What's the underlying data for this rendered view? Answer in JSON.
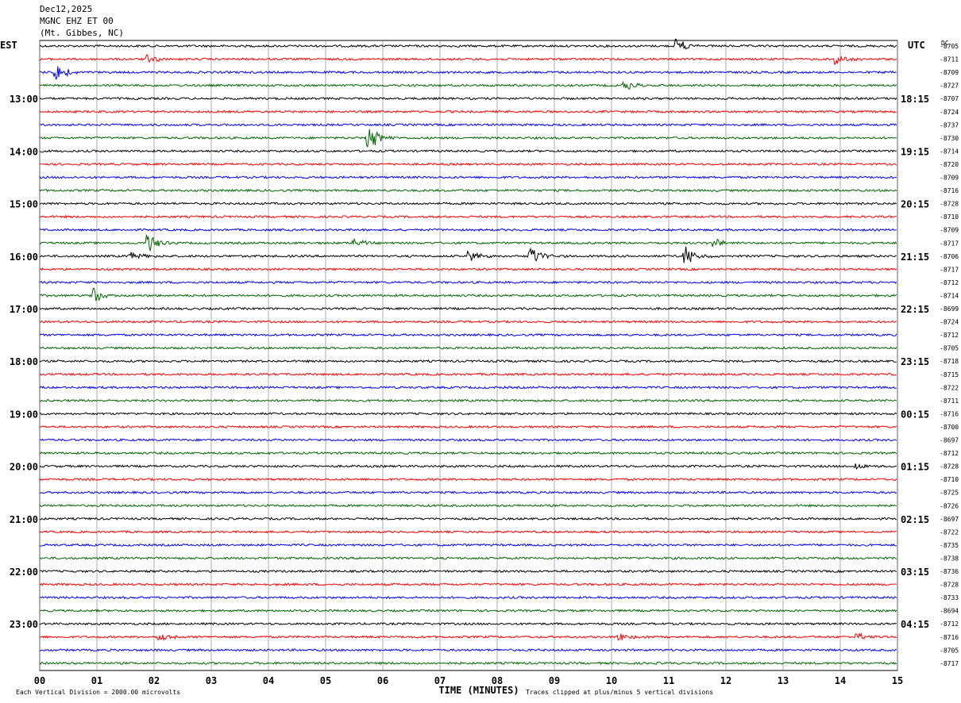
{
  "header": {
    "date": "Dec12,2025",
    "station": "MGNC EHZ ET 00",
    "location": "(Mt. Gibbes, NC)"
  },
  "chart_data": {
    "type": "line",
    "title": "",
    "left_axis_label": "EST",
    "right_axis_label": "UTC",
    "dc_label": "DC",
    "xlabel": "TIME (MINUTES)",
    "x_ticks": [
      "00",
      "01",
      "02",
      "03",
      "04",
      "05",
      "06",
      "07",
      "08",
      "09",
      "10",
      "11",
      "12",
      "13",
      "14",
      "15"
    ],
    "xlim": [
      0,
      15
    ],
    "est_hour_labels": [
      "13:00",
      "14:00",
      "15:00",
      "16:00",
      "17:00",
      "18:00",
      "19:00",
      "20:00",
      "21:00",
      "22:00",
      "23:00"
    ],
    "utc_hour_labels": [
      "18:15",
      "19:15",
      "20:15",
      "21:15",
      "22:15",
      "23:15",
      "00:15",
      "01:15",
      "02:15",
      "03:15",
      "04:15"
    ],
    "dc_offsets": [
      "-8705",
      "-8711",
      "-8709",
      "-8727",
      "-8707",
      "-8724",
      "-8737",
      "-8730",
      "-8714",
      "-8720",
      "-8709",
      "-8716",
      "-8728",
      "-8710",
      "-8709",
      "-8717",
      "-8706",
      "-8717",
      "-8712",
      "-8714",
      "-8699",
      "-8724",
      "-8712",
      "-8705",
      "-8718",
      "-8715",
      "-8722",
      "-8711",
      "-8716",
      "-8700",
      "-8697",
      "-8712",
      "-8728",
      "-8710",
      "-8725",
      "-8726",
      "-8697",
      "-8722",
      "-8735",
      "-8738",
      "-8736",
      "-8728",
      "-8733",
      "-8694",
      "-8712",
      "-8716",
      "-8705",
      "-8717"
    ],
    "trace_colors": [
      "#000000",
      "#ff0000",
      "#0000ff",
      "#006400"
    ],
    "trace_count": 48,
    "minutes_per_trace": 15,
    "events": [
      {
        "trace": 0,
        "minute": 11.15,
        "amp": 0.8
      },
      {
        "trace": 1,
        "minute": 1.9,
        "amp": 0.5
      },
      {
        "trace": 1,
        "minute": 13.95,
        "amp": 0.6
      },
      {
        "trace": 2,
        "minute": 0.3,
        "amp": 1.0
      },
      {
        "trace": 3,
        "minute": 10.25,
        "amp": 0.5
      },
      {
        "trace": 7,
        "minute": 5.75,
        "amp": 1.5
      },
      {
        "trace": 15,
        "minute": 1.9,
        "amp": 1.0
      },
      {
        "trace": 15,
        "minute": 5.5,
        "amp": 0.5
      },
      {
        "trace": 15,
        "minute": 11.8,
        "amp": 0.5
      },
      {
        "trace": 16,
        "minute": 1.6,
        "amp": 0.5
      },
      {
        "trace": 16,
        "minute": 7.5,
        "amp": 0.6
      },
      {
        "trace": 16,
        "minute": 8.6,
        "amp": 1.0
      },
      {
        "trace": 16,
        "minute": 11.3,
        "amp": 1.0
      },
      {
        "trace": 19,
        "minute": 0.95,
        "amp": 0.8
      },
      {
        "trace": 32,
        "minute": 14.3,
        "amp": 0.4
      },
      {
        "trace": 45,
        "minute": 2.1,
        "amp": 0.5
      },
      {
        "trace": 45,
        "minute": 10.15,
        "amp": 0.4
      },
      {
        "trace": 45,
        "minute": 14.3,
        "amp": 0.4
      }
    ]
  },
  "footer": {
    "scale_note": "Each Vertical Division = 2000.00 microvolts",
    "clip_note": "Traces clipped at plus/minus 5 vertical divisions"
  }
}
